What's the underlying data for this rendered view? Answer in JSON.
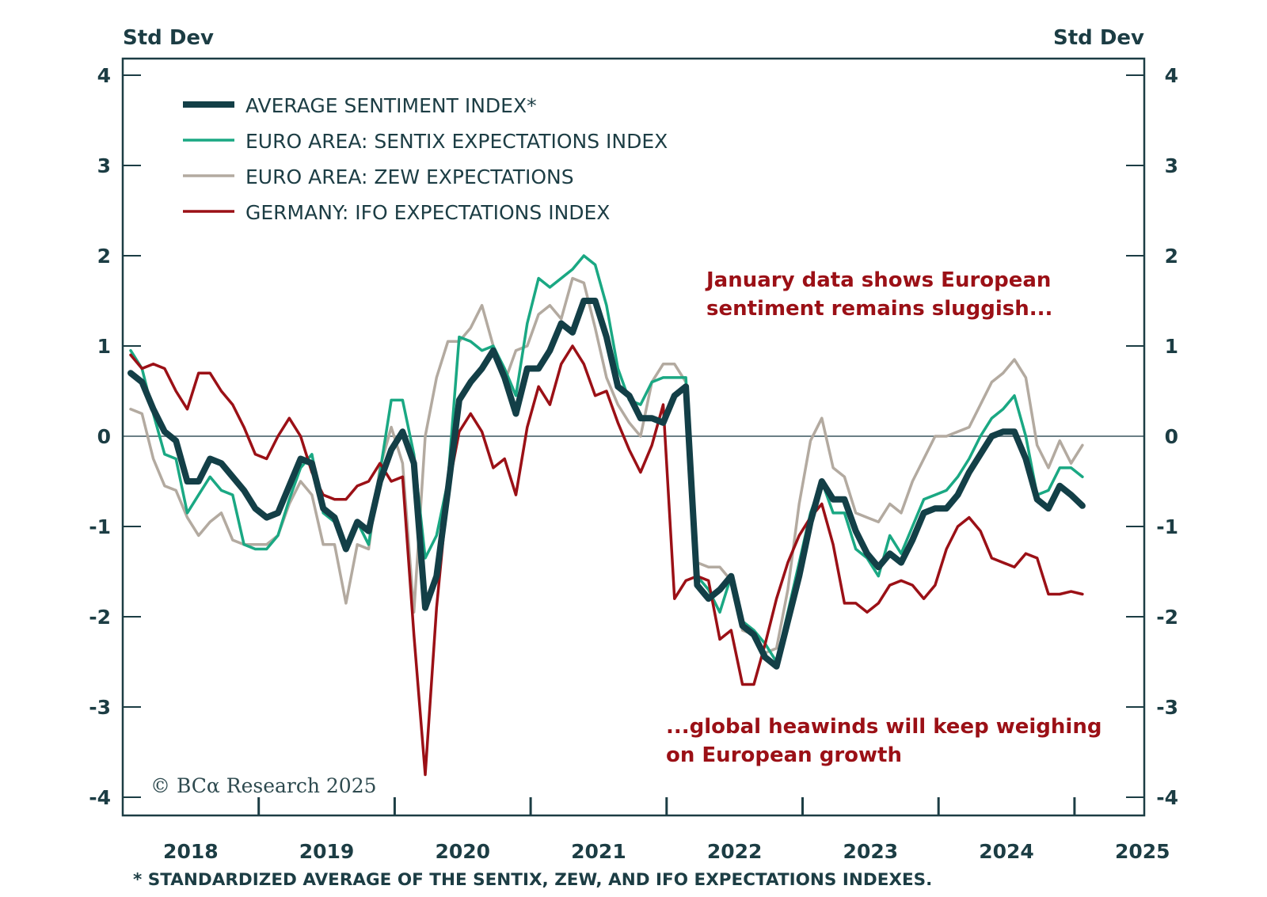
{
  "chart_data": {
    "type": "line",
    "title": "",
    "ylabel_left": "Std Dev",
    "ylabel_right": "Std Dev",
    "xlabel": "",
    "ylim": [
      -4.2,
      4.3
    ],
    "yticks": [
      4,
      3,
      2,
      1,
      0,
      -1,
      -2,
      -3,
      -4
    ],
    "ytick_labels": [
      "4",
      "3",
      "2",
      "1",
      "0",
      "-1",
      "-2",
      "-3",
      "-4"
    ],
    "x_start": "2018-01",
    "x_end": "2025-01",
    "frequency": "monthly",
    "xtick_labels": [
      "2018",
      "2019",
      "2020",
      "2021",
      "2022",
      "2023",
      "2024",
      "2025"
    ],
    "zero_line": true,
    "grid": false,
    "legend_position": "top-left",
    "series": [
      {
        "name": "AVERAGE SENTIMENT INDEX*",
        "color": "#133f47",
        "values": [
          0.7,
          0.6,
          0.3,
          0.05,
          -0.05,
          -0.5,
          -0.5,
          -0.25,
          -0.3,
          -0.45,
          -0.6,
          -0.8,
          -0.9,
          -0.85,
          -0.55,
          -0.25,
          -0.3,
          -0.8,
          -0.9,
          -1.25,
          -0.95,
          -1.05,
          -0.5,
          -0.15,
          0.05,
          -0.3,
          -1.9,
          -1.55,
          -0.6,
          0.4,
          0.6,
          0.75,
          0.95,
          0.65,
          0.25,
          0.75,
          0.75,
          0.95,
          1.25,
          1.15,
          1.5,
          1.5,
          1.1,
          0.55,
          0.45,
          0.2,
          0.2,
          0.15,
          0.45,
          0.55,
          -1.65,
          -1.8,
          -1.7,
          -1.55,
          -2.1,
          -2.2,
          -2.45,
          -2.55,
          -2.05,
          -1.55,
          -0.95,
          -0.5,
          -0.7,
          -0.7,
          -1.05,
          -1.3,
          -1.45,
          -1.3,
          -1.4,
          -1.15,
          -0.85,
          -0.8,
          -0.8,
          -0.65,
          -0.4,
          -0.2,
          0.0,
          0.05,
          0.05,
          -0.25,
          -0.7,
          -0.8,
          -0.55,
          -0.65,
          -0.77
        ]
      },
      {
        "name": "EURO AREA: SENTIX EXPECTATIONS INDEX",
        "color": "#1aa883",
        "values": [
          0.95,
          0.75,
          0.25,
          -0.2,
          -0.25,
          -0.85,
          -0.65,
          -0.45,
          -0.6,
          -0.65,
          -1.2,
          -1.25,
          -1.25,
          -1.1,
          -0.7,
          -0.35,
          -0.2,
          -0.85,
          -0.95,
          -1.25,
          -0.95,
          -1.2,
          -0.4,
          0.4,
          0.4,
          -0.2,
          -1.35,
          -1.1,
          -0.5,
          1.1,
          1.05,
          0.95,
          1.0,
          0.75,
          0.45,
          1.25,
          1.75,
          1.65,
          1.75,
          1.85,
          2.0,
          1.9,
          1.45,
          0.75,
          0.4,
          0.35,
          0.6,
          0.65,
          0.65,
          0.65,
          -1.55,
          -1.7,
          -1.95,
          -1.55,
          -2.05,
          -2.15,
          -2.3,
          -2.5,
          -1.95,
          -1.4,
          -0.85,
          -0.5,
          -0.85,
          -0.85,
          -1.25,
          -1.35,
          -1.55,
          -1.1,
          -1.3,
          -1.0,
          -0.7,
          -0.65,
          -0.6,
          -0.45,
          -0.25,
          0.0,
          0.2,
          0.3,
          0.45,
          0.0,
          -0.65,
          -0.6,
          -0.35,
          -0.35,
          -0.45
        ]
      },
      {
        "name": "EURO AREA: ZEW EXPECTATIONS",
        "color": "#b3aaa0",
        "values": [
          0.3,
          0.25,
          -0.25,
          -0.55,
          -0.6,
          -0.9,
          -1.1,
          -0.95,
          -0.85,
          -1.15,
          -1.2,
          -1.2,
          -1.2,
          -1.1,
          -0.75,
          -0.5,
          -0.65,
          -1.2,
          -1.2,
          -1.85,
          -1.2,
          -1.25,
          -0.35,
          0.1,
          -0.3,
          -1.95,
          0.0,
          0.65,
          1.05,
          1.05,
          1.2,
          1.45,
          1.0,
          0.6,
          0.95,
          1.0,
          1.35,
          1.45,
          1.3,
          1.75,
          1.7,
          1.2,
          0.65,
          0.35,
          0.15,
          0.0,
          0.6,
          0.8,
          0.8,
          0.6,
          -1.4,
          -1.45,
          -1.45,
          -1.6,
          -2.15,
          -2.2,
          -2.4,
          -2.35,
          -1.7,
          -0.75,
          -0.05,
          0.2,
          -0.35,
          -0.45,
          -0.85,
          -0.9,
          -0.95,
          -0.75,
          -0.85,
          -0.5,
          -0.25,
          0.0,
          0.0,
          0.05,
          0.1,
          0.35,
          0.6,
          0.7,
          0.85,
          0.65,
          -0.1,
          -0.35,
          -0.05,
          -0.3,
          -0.1
        ]
      },
      {
        "name": "GERMANY: IFO EXPECTATIONS INDEX",
        "color": "#9b1016",
        "values": [
          0.9,
          0.75,
          0.8,
          0.75,
          0.5,
          0.3,
          0.7,
          0.7,
          0.5,
          0.35,
          0.1,
          -0.2,
          -0.25,
          0.0,
          0.2,
          0.0,
          -0.4,
          -0.65,
          -0.7,
          -0.7,
          -0.55,
          -0.5,
          -0.3,
          -0.5,
          -0.45,
          -2.2,
          -3.75,
          -1.9,
          -0.6,
          0.05,
          0.25,
          0.05,
          -0.35,
          -0.25,
          -0.65,
          0.1,
          0.55,
          0.35,
          0.8,
          1.0,
          0.8,
          0.45,
          0.5,
          0.15,
          -0.15,
          -0.4,
          -0.1,
          0.35,
          -1.8,
          -1.6,
          -1.55,
          -1.6,
          -2.25,
          -2.15,
          -2.75,
          -2.75,
          -2.3,
          -1.8,
          -1.4,
          -1.1,
          -0.9,
          -0.75,
          -1.2,
          -1.85,
          -1.85,
          -1.95,
          -1.85,
          -1.65,
          -1.6,
          -1.65,
          -1.8,
          -1.65,
          -1.25,
          -1.0,
          -0.9,
          -1.05,
          -1.35,
          -1.4,
          -1.45,
          -1.3,
          -1.35,
          -1.75,
          -1.75,
          -1.72,
          -1.75
        ]
      }
    ],
    "annotations": [
      {
        "lines": [
          "January data shows European",
          "sentiment remains sluggish..."
        ],
        "color": "#9b1016"
      },
      {
        "lines": [
          "...global heawinds will keep weighing",
          "on European growth"
        ],
        "color": "#9b1016"
      }
    ],
    "footnote": "* STANDARDIZED AVERAGE OF THE SENTIX, ZEW, AND IFO EXPECTATIONS INDEXES.",
    "credit": "© BCα Research 2025"
  },
  "frame_color": "#1c3d44",
  "zero_line_color": "#6b7f86"
}
